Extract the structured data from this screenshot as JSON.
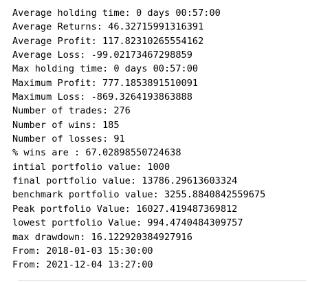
{
  "output": {
    "lines": [
      "Average holding time: 0 days 00:57:00",
      "Average Returns: 46.32715991316391",
      "Average Profit: 117.82310265554162",
      "Average Loss: -99.02173467298859",
      "Max holding time: 0 days 00:57:00",
      "Maximum Profit: 777.1853891510091",
      "Maximum Loss: -869.3264193863888",
      "Number of trades: 276",
      "Number of wins: 185",
      "Number of losses: 91",
      "% wins are : 67.02898550724638",
      "intial portfolio value: 1000",
      "final portfolio value: 13786.29613603324",
      "benchmark portfolio value: 3255.8840842559675",
      "Peak portfolio Value: 16027.419487369812",
      "lowest portfolio Value: 994.4740484309757",
      "max drawdown: 16.122920384927916",
      "From: 2018-01-03 15:30:00",
      "From: 2021-12-04 13:27:00"
    ]
  },
  "colors": {
    "text": "#000000",
    "background": "#ffffff",
    "divider": "#e0e0e0"
  }
}
